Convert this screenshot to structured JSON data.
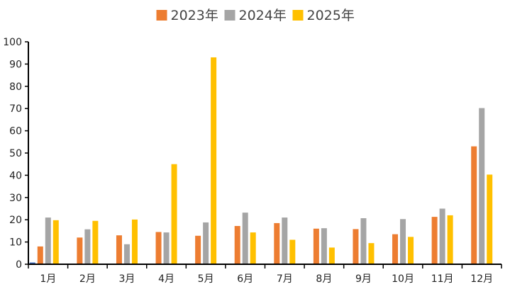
{
  "chart_data": {
    "type": "bar",
    "categories": [
      "1月",
      "2月",
      "3月",
      "4月",
      "5月",
      "6月",
      "7月",
      "8月",
      "9月",
      "10月",
      "11月",
      "12月"
    ],
    "series": [
      {
        "name": "2023年",
        "color": "#ED7D31",
        "values": [
          8,
          12,
          13,
          14.5,
          12.8,
          17.2,
          18.5,
          16,
          15.8,
          13.5,
          21.3,
          53
        ]
      },
      {
        "name": "2024年",
        "color": "#A5A5A5",
        "values": [
          21,
          15.7,
          9,
          14.3,
          18.8,
          23.2,
          21,
          16.2,
          20.7,
          20.3,
          25,
          70.2
        ]
      },
      {
        "name": "2025年",
        "color": "#FFC000",
        "values": [
          19.8,
          19.5,
          20.1,
          45,
          93,
          14.3,
          11,
          7.5,
          9.5,
          12.3,
          22,
          40.3
        ]
      }
    ],
    "extra_marks": [
      {
        "category": "1月",
        "color": "#4472C4",
        "value": 0.8
      }
    ],
    "ylim": [
      0,
      100
    ],
    "yticks": [
      0,
      10,
      20,
      30,
      40,
      50,
      60,
      70,
      80,
      90,
      100
    ],
    "legend_position": "top-center",
    "grid": false,
    "title": "",
    "xlabel": "",
    "ylabel": ""
  }
}
